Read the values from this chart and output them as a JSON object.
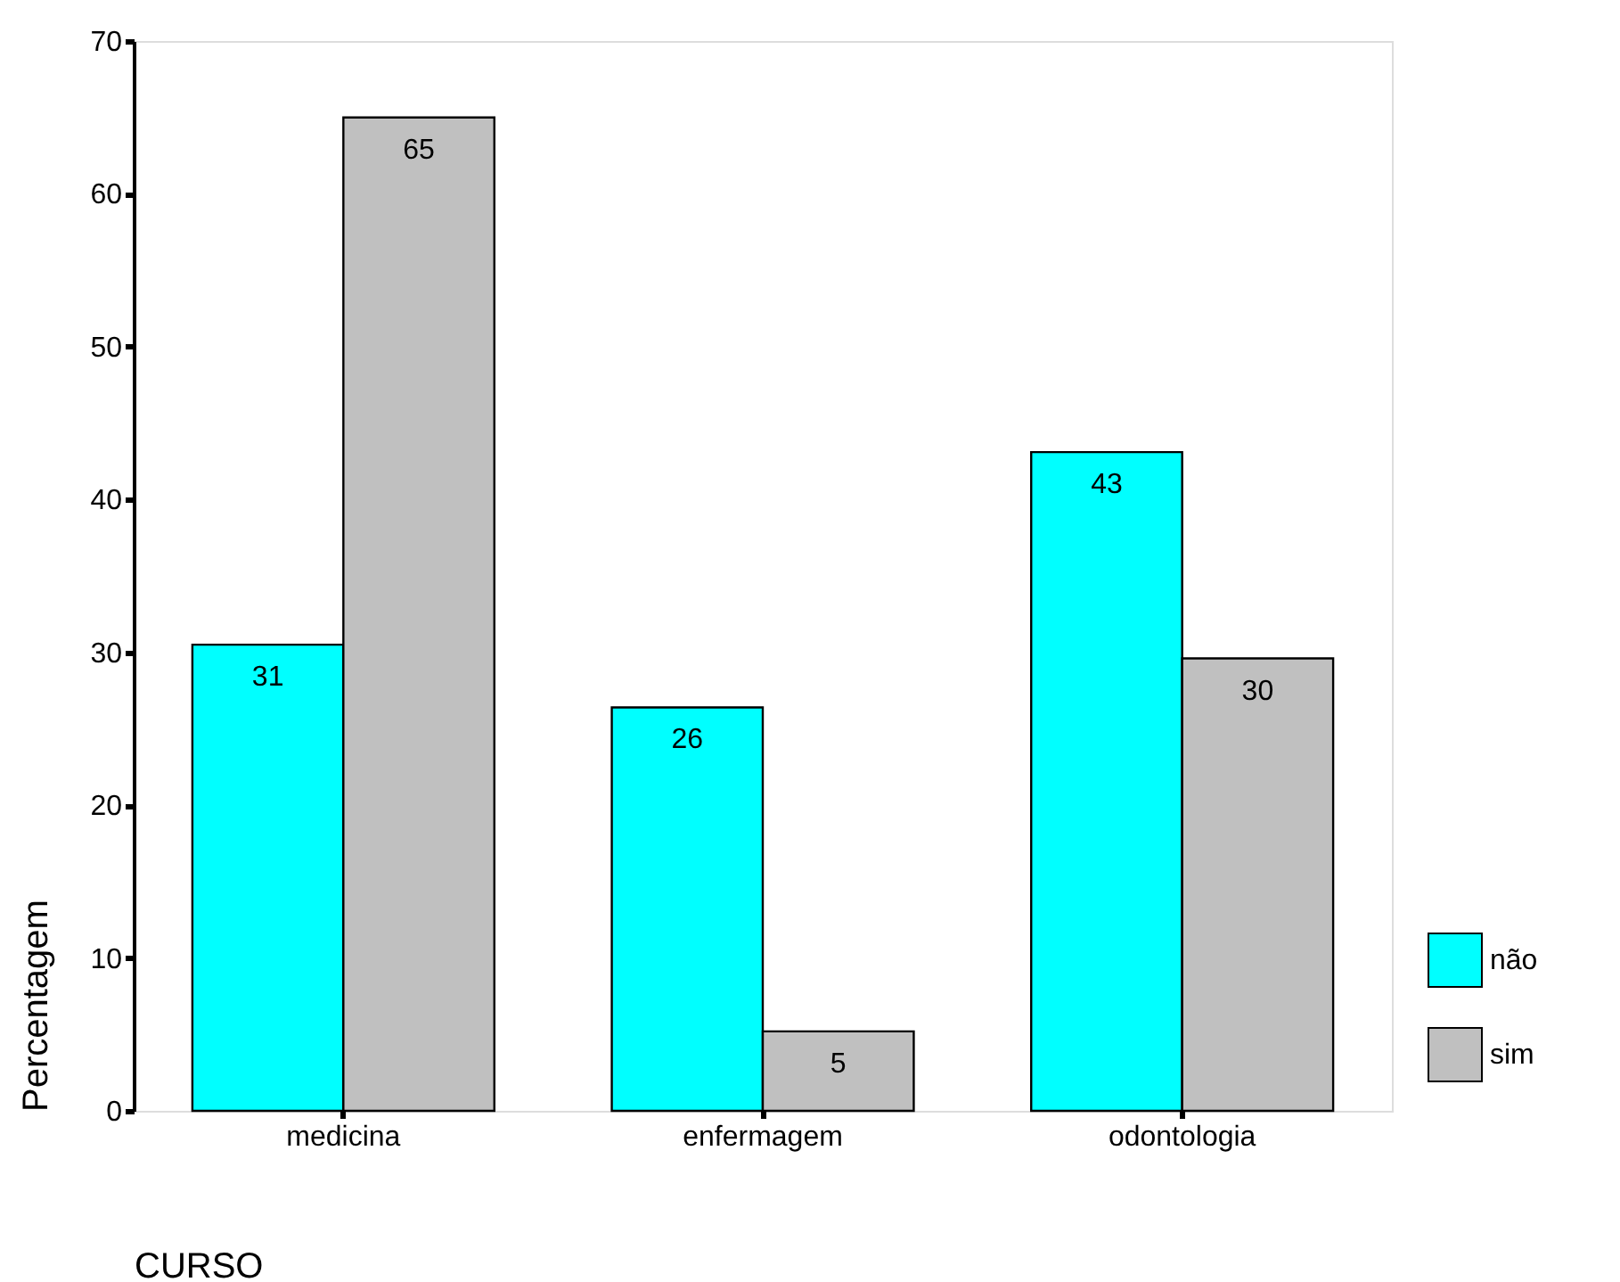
{
  "chart_data": {
    "type": "bar",
    "xlabel": "CURSO",
    "ylabel": "Percentagem",
    "categories": [
      "medicina",
      "enfermagem",
      "odontologia"
    ],
    "series": [
      {
        "name": "não",
        "color": "#00ffff",
        "values": [
          30.5,
          26.4,
          43.1
        ],
        "value_labels": [
          "31",
          "26",
          "43"
        ]
      },
      {
        "name": "sim",
        "color": "#c0c0c0",
        "values": [
          65,
          5.2,
          29.6
        ],
        "value_labels": [
          "65",
          "5",
          "30"
        ]
      }
    ],
    "ylim": [
      0,
      70
    ],
    "yticks": [
      0,
      10,
      20,
      30,
      40,
      50,
      60,
      70
    ],
    "grid": false,
    "legend": "bottom right"
  }
}
